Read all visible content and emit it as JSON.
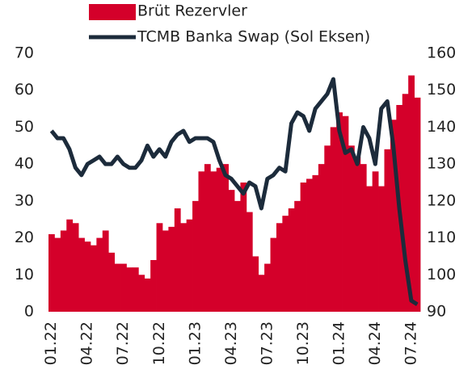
{
  "chart_data": {
    "type": "bar+line",
    "categories": [
      "01.22",
      null,
      null,
      null,
      null,
      null,
      "04.22",
      null,
      null,
      null,
      null,
      null,
      "07.22",
      null,
      null,
      null,
      null,
      null,
      "10.22",
      null,
      null,
      null,
      null,
      null,
      "01.23",
      null,
      null,
      null,
      null,
      null,
      "04.23",
      null,
      null,
      null,
      null,
      null,
      "07.23",
      null,
      null,
      null,
      null,
      null,
      "10.23",
      null,
      null,
      null,
      null,
      null,
      "01.24",
      null,
      null,
      null,
      null,
      null,
      "04.24",
      null,
      null,
      null,
      null,
      null,
      "07.24",
      null
    ],
    "series": [
      {
        "name": "Brüt Rezervler",
        "type": "bar",
        "axis": "y2",
        "color": "#d4002a",
        "values": [
          111,
          110,
          112,
          115,
          114,
          110,
          109,
          108,
          110,
          112,
          106,
          103,
          103,
          102,
          102,
          100,
          99,
          104,
          114,
          112,
          113,
          118,
          114,
          115,
          120,
          128,
          130,
          128,
          129,
          130,
          123,
          120,
          125,
          117,
          105,
          100,
          103,
          110,
          114,
          116,
          118,
          120,
          125,
          126,
          127,
          130,
          135,
          140,
          144,
          143,
          135,
          132,
          130,
          124,
          128,
          124,
          134,
          142,
          146,
          149,
          154,
          148
        ]
      },
      {
        "name": "TCMB Banka Swap (Sol Eksen)",
        "type": "line",
        "axis": "y",
        "color": "#1c2b3b",
        "values": [
          49,
          47,
          47,
          44,
          39,
          37,
          40,
          41,
          42,
          40,
          40,
          42,
          40,
          39,
          39,
          41,
          45,
          42,
          44,
          42,
          46,
          48,
          49,
          46,
          47,
          47,
          47,
          46,
          41,
          37,
          36,
          34,
          32,
          35,
          34,
          28,
          36,
          37,
          39,
          38,
          51,
          54,
          53,
          49,
          55,
          57,
          59,
          63,
          49,
          43,
          44,
          40,
          50,
          47,
          40,
          55,
          57,
          45,
          28,
          14,
          3,
          2
        ]
      }
    ],
    "ylim": [
      0,
      70
    ],
    "yticks": [
      0,
      10,
      20,
      30,
      40,
      50,
      60,
      70
    ],
    "y2lim": [
      90,
      160
    ],
    "y2ticks": [
      90,
      100,
      110,
      120,
      130,
      140,
      150,
      160
    ],
    "legend": "top"
  }
}
